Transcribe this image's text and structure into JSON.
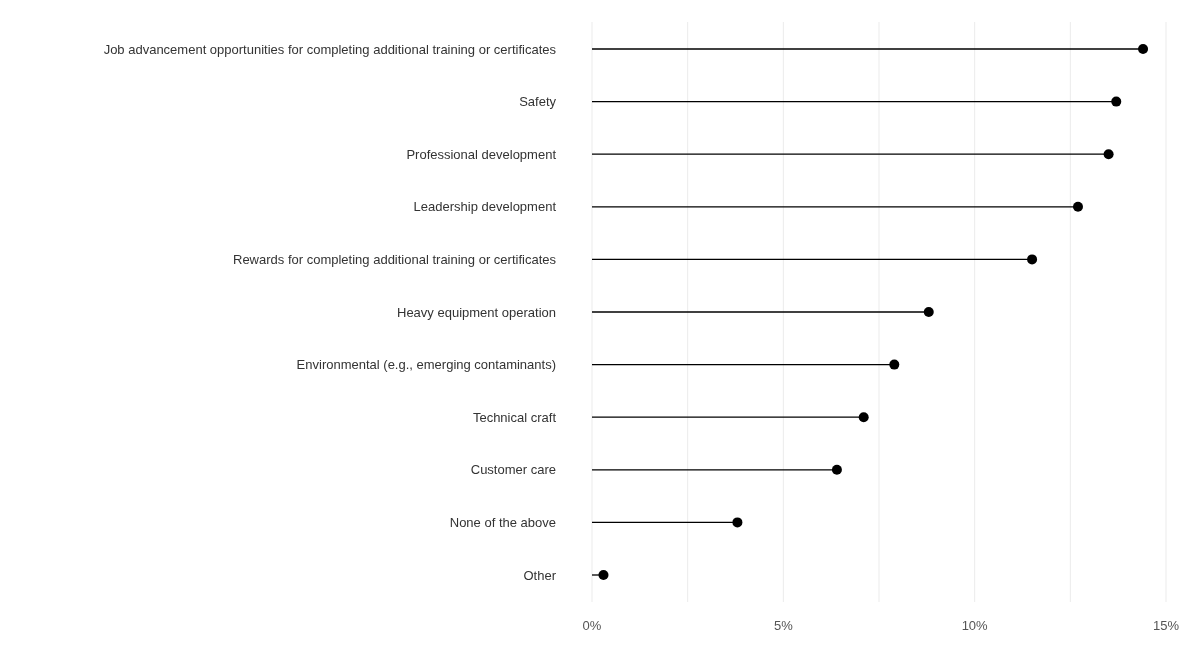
{
  "chart_data": {
    "type": "lollipop",
    "orientation": "horizontal",
    "categories": [
      "Job advancement opportunities for completing additional training or certificates",
      "Safety",
      "Professional development",
      "Leadership development",
      "Rewards for completing additional training or certificates",
      "Heavy equipment operation",
      "Environmental (e.g., emerging contaminants)",
      "Technical craft",
      "Customer care",
      "None of the above",
      "Other"
    ],
    "values": [
      14.4,
      13.7,
      13.5,
      12.7,
      11.5,
      8.8,
      7.9,
      7.1,
      6.4,
      3.8,
      0.3
    ],
    "color": "#000000",
    "xlim": [
      0,
      15
    ],
    "xticks": [
      {
        "value": 0,
        "label": "0%"
      },
      {
        "value": 2.5,
        "label": null
      },
      {
        "value": 5,
        "label": "5%"
      },
      {
        "value": 7.5,
        "label": null
      },
      {
        "value": 10,
        "label": "10%"
      },
      {
        "value": 12.5,
        "label": null
      },
      {
        "value": 15,
        "label": "15%"
      }
    ],
    "grid": "x",
    "marker": "circle"
  }
}
